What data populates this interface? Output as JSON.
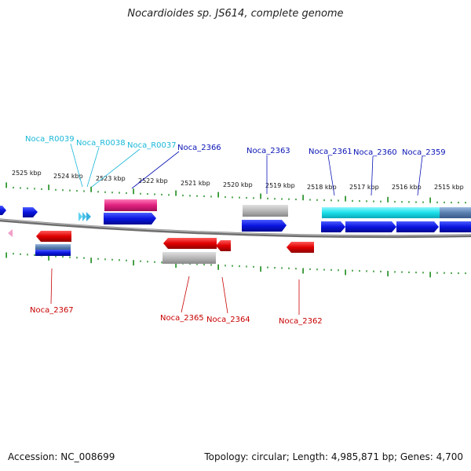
{
  "title": "Nocardioides sp. JS614, complete genome",
  "footer": {
    "accession": "Accession: NC_008699",
    "stats": "Topology: circular; Length: 4,985,871 bp; Genes: 4,700"
  },
  "colors": {
    "tick": "#1a8a1a",
    "backbone": "#8a8a8a",
    "forward_gene": "#0a14e0",
    "reverse_gene": "#e00000",
    "rna": "#e0207e",
    "misc": "#b0b0b0",
    "cyan": "#19e0e8",
    "steel": "#5a80b0",
    "forward_label": "#0a14b4",
    "reverse_label": "#c80000",
    "rna_label": "#19b8d8"
  },
  "kbp_labels": [
    "2525 kbp",
    "2524 kbp",
    "2523 kbp",
    "2522 kbp",
    "2521 kbp",
    "2520 kbp",
    "2519 kbp",
    "2518 kbp",
    "2517 kbp",
    "2516 kbp",
    "2515 kbp"
  ],
  "gene_labels": {
    "rna": [
      "Noca_R0039",
      "Noca_R0038",
      "Noca_R0037"
    ],
    "forward": [
      "Noca_2366",
      "Noca_2363",
      "Noca_2361",
      "Noca_2360",
      "Noca_2359"
    ],
    "reverse": [
      "Noca_2367",
      "Noca_2365",
      "Noca_2364",
      "Noca_2362"
    ]
  }
}
